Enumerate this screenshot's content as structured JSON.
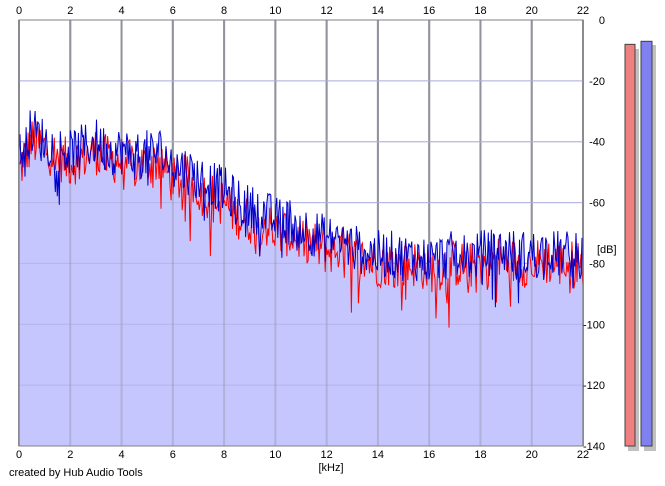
{
  "credit": "created by Hub Audio Tools",
  "colors": {
    "fill": "#c6c6ff",
    "left_channel": "#ff0000",
    "right_channel": "#0000cc",
    "grid": "#c8c8c8",
    "major_grid": "#8c8c8c",
    "meter_left": "#f08080",
    "meter_right": "#8080f0"
  },
  "chart_data": {
    "type": "line",
    "xlabel": "[kHz]",
    "ylabel": "[dB]",
    "xlim": [
      0,
      22
    ],
    "ylim": [
      -140,
      0
    ],
    "x_ticks": [
      "0",
      "2",
      "4",
      "6",
      "8",
      "10",
      "12",
      "14",
      "16",
      "18",
      "20",
      "22"
    ],
    "y_ticks": [
      "0",
      "-20",
      "-40",
      "-60",
      "-80",
      "-100",
      "-120",
      "-140"
    ],
    "grid": true,
    "series": [
      {
        "color": "#ff0000",
        "x": [
          0,
          0.5,
          1,
          1.5,
          2,
          2.5,
          3,
          3.5,
          4,
          4.5,
          5,
          5.5,
          6,
          6.5,
          7,
          7.5,
          8,
          8.5,
          9,
          9.5,
          10,
          10.5,
          11,
          11.5,
          12,
          12.5,
          13,
          13.5,
          14,
          14.5,
          15,
          15.5,
          16,
          16.5,
          17,
          17.5,
          18,
          18.5,
          19,
          19.5,
          20,
          20.5,
          21,
          21.5,
          22
        ],
        "values": [
          -50,
          -40,
          -42,
          -45,
          -47,
          -45,
          -43,
          -46,
          -46,
          -48,
          -47,
          -46,
          -53,
          -52,
          -56,
          -58,
          -60,
          -64,
          -66,
          -66,
          -70,
          -70,
          -72,
          -74,
          -76,
          -75,
          -78,
          -79,
          -80,
          -80,
          -81,
          -80,
          -82,
          -81,
          -80,
          -81,
          -80,
          -79,
          -79,
          -80,
          -80,
          -79,
          -80,
          -80,
          -80
        ]
      },
      {
        "color": "#0000cc",
        "x": [
          0,
          0.5,
          1,
          1.5,
          2,
          2.5,
          3,
          3.5,
          4,
          4.5,
          5,
          5.5,
          6,
          6.5,
          7,
          7.5,
          8,
          8.5,
          9,
          9.5,
          10,
          10.5,
          11,
          11.5,
          12,
          12.5,
          13,
          13.5,
          14,
          14.5,
          15,
          15.5,
          16,
          16.5,
          17,
          17.5,
          18,
          18.5,
          19,
          19.5,
          20,
          20.5,
          21,
          21.5,
          22
        ],
        "values": [
          -45,
          -36,
          -40,
          -42,
          -44,
          -42,
          -40,
          -43,
          -43,
          -45,
          -44,
          -43,
          -48,
          -49,
          -52,
          -54,
          -56,
          -60,
          -62,
          -63,
          -66,
          -66,
          -68,
          -70,
          -72,
          -72,
          -75,
          -76,
          -77,
          -77,
          -78,
          -78,
          -79,
          -78,
          -77,
          -78,
          -77,
          -76,
          -76,
          -77,
          -77,
          -76,
          -77,
          -77,
          -78
        ]
      }
    ]
  },
  "meters": {
    "left_level_db": -8,
    "right_level_db": -7
  }
}
